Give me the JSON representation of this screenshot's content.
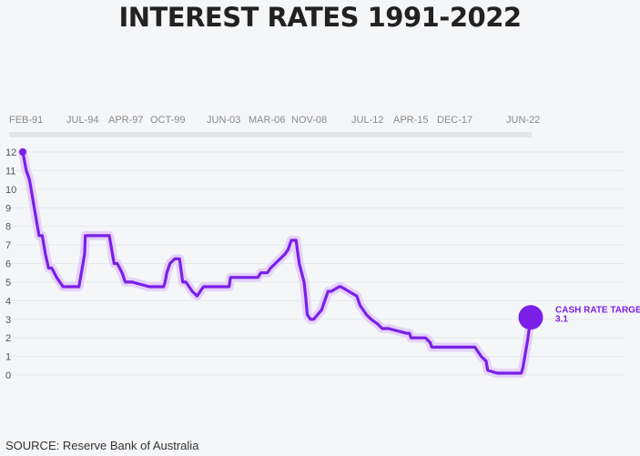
{
  "header": {
    "title": "INTEREST RATES 1991-2022"
  },
  "footer": {
    "source": "SOURCE: Reserve Bank of Australia"
  },
  "colors": {
    "line": "#7b1fe8",
    "glow": "#e4d2fb",
    "grid": "#e6e8ec",
    "axis_band": "#d9dadd"
  },
  "chart_data": {
    "type": "line",
    "title": "INTEREST RATES 1991-2022",
    "x_tick_labels": [
      "FEB-91",
      "JUL-94",
      "APR-97",
      "OCT-99",
      "JUN-03",
      "MAR-06",
      "NOV-08",
      "JUL-12",
      "APR-15",
      "DEC-17",
      "JUN-22"
    ],
    "y_ticks": [
      0,
      1,
      2,
      3,
      4,
      5,
      6,
      7,
      8,
      9,
      10,
      11,
      12
    ],
    "ylim": [
      0,
      12
    ],
    "xlim": [
      1991.08,
      2022.9
    ],
    "grid": true,
    "annotation": {
      "label": "CASH RATE TARGET",
      "value_label": "3.1",
      "x": 2022.9,
      "y": 3.1
    },
    "series": [
      {
        "x": [
          1991.08,
          1991.3,
          1991.5,
          1991.7,
          1991.9,
          1992.1,
          1992.3,
          1992.5,
          1992.7,
          1992.9,
          1993.2,
          1993.6,
          1994.0,
          1994.6,
          1994.75,
          1994.95,
          1995.0,
          1996.5,
          1996.6,
          1996.8,
          1997.0,
          1997.3,
          1997.5,
          1997.95,
          1999.0,
          1999.9,
          2000.0,
          2000.1,
          2000.3,
          2000.6,
          2000.9,
          2001.1,
          2001.3,
          2001.7,
          2002.0,
          2002.4,
          2002.5,
          2004.0,
          2004.1,
          2005.8,
          2006.0,
          2006.4,
          2006.6,
          2006.9,
          2007.2,
          2007.5,
          2007.7,
          2007.9,
          2008.2,
          2008.4,
          2008.7,
          2008.8,
          2008.9,
          2009.1,
          2009.3,
          2009.8,
          2009.9,
          2010.0,
          2010.2,
          2010.4,
          2010.9,
          2011.0,
          2012.0,
          2012.2,
          2012.4,
          2012.6,
          2012.9,
          2013.3,
          2013.6,
          2014.0,
          2015.1,
          2015.3,
          2015.4,
          2016.3,
          2016.6,
          2016.7,
          2019.4,
          2019.6,
          2019.8,
          2020.1,
          2020.2,
          2020.8,
          2020.9,
          2022.3,
          2022.4,
          2022.5,
          2022.6,
          2022.7,
          2022.9
        ],
        "y": [
          12.0,
          11.0,
          10.5,
          9.5,
          8.5,
          7.5,
          7.5,
          6.5,
          5.75,
          5.75,
          5.25,
          4.75,
          4.75,
          4.75,
          5.5,
          6.5,
          7.5,
          7.5,
          7.0,
          6.0,
          6.0,
          5.5,
          5.0,
          5.0,
          4.75,
          4.75,
          5.0,
          5.5,
          6.0,
          6.25,
          6.25,
          5.0,
          5.0,
          4.5,
          4.25,
          4.75,
          4.75,
          4.75,
          5.25,
          5.25,
          5.5,
          5.5,
          5.75,
          6.0,
          6.25,
          6.5,
          6.75,
          7.25,
          7.25,
          6.0,
          5.0,
          4.25,
          3.25,
          3.0,
          3.0,
          3.5,
          3.75,
          4.0,
          4.5,
          4.5,
          4.75,
          4.75,
          4.25,
          3.75,
          3.5,
          3.25,
          3.0,
          2.75,
          2.5,
          2.5,
          2.25,
          2.25,
          2.0,
          2.0,
          1.75,
          1.5,
          1.5,
          1.25,
          1.0,
          0.75,
          0.25,
          0.1,
          0.1,
          0.1,
          0.35,
          0.85,
          1.35,
          1.85,
          3.1
        ]
      }
    ]
  }
}
